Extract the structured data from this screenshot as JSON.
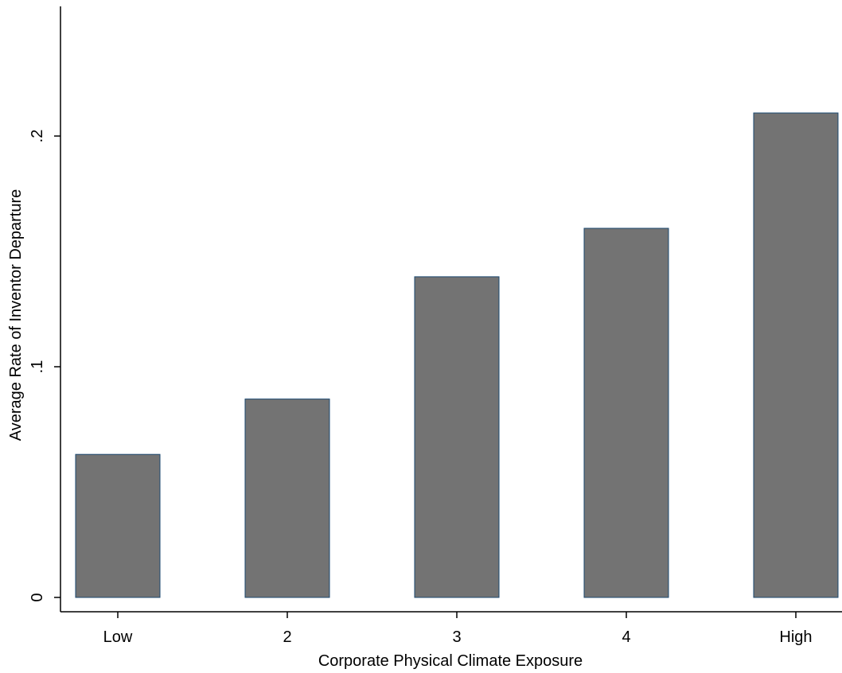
{
  "chart_data": {
    "type": "bar",
    "title": "",
    "xlabel": "Corporate Physical Climate Exposure",
    "ylabel": "Average Rate of Inventor Departure",
    "categories": [
      "Low",
      "2",
      "3",
      "4",
      "High"
    ],
    "values": [
      0.062,
      0.086,
      0.139,
      0.16,
      0.21
    ],
    "ylim": [
      0,
      0.26
    ],
    "yticks": [
      {
        "value": 0,
        "label": "0"
      },
      {
        "value": 0.1,
        "label": ".1"
      },
      {
        "value": 0.2,
        "label": ".2"
      }
    ],
    "grid": false,
    "legend": "none",
    "bar_color": "#737373",
    "bar_edge_color": "#1a476f"
  }
}
